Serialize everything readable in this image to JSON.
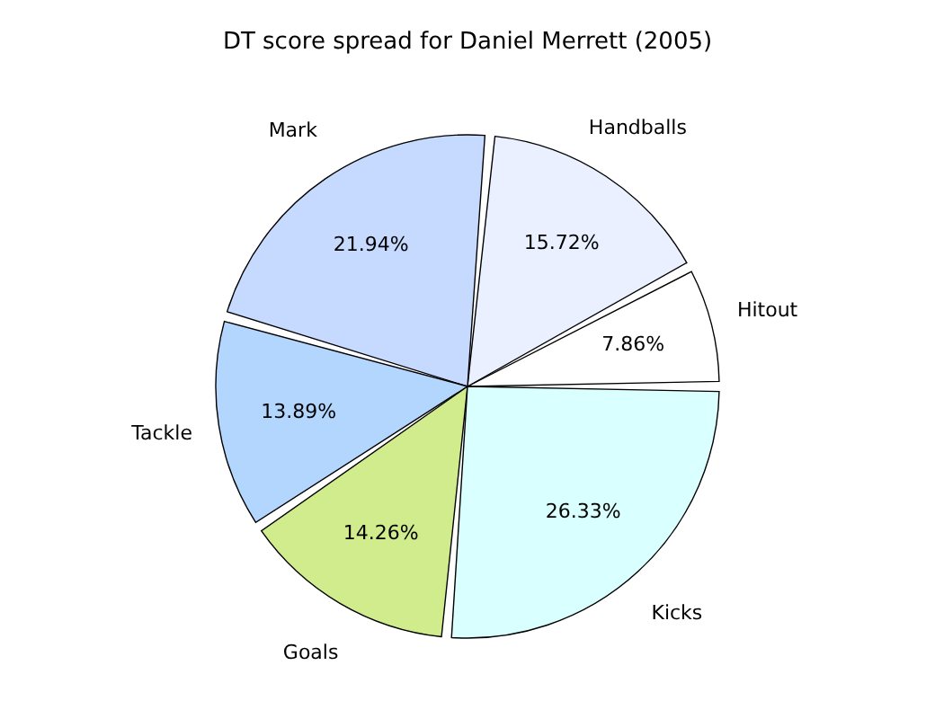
{
  "chart_data": {
    "type": "pie",
    "title": "DT score spread for Daniel Merrett (2005)",
    "categories": [
      "Hitout",
      "Handballs",
      "Mark",
      "Tackle",
      "Goals",
      "Kicks"
    ],
    "values": [
      7.86,
      15.72,
      21.94,
      13.89,
      14.26,
      26.33
    ],
    "colors": [
      "#ffffff",
      "#eaf0ff",
      "#c6d9ff",
      "#b3d6ff",
      "#d0ec8c",
      "#d9ffff"
    ],
    "value_labels": [
      "7.86%",
      "15.72%",
      "21.94%",
      "13.89%",
      "14.26%",
      "26.33%"
    ],
    "legend": false
  }
}
